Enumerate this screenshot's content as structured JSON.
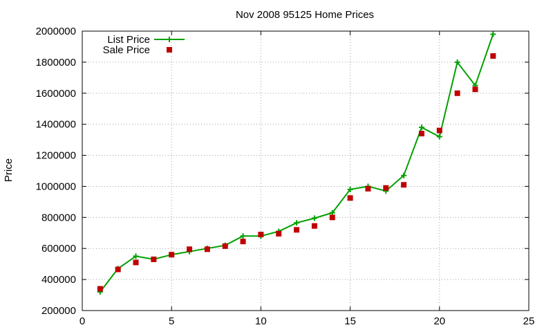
{
  "chart_data": {
    "type": "line",
    "title": "Nov 2008 95125 Home Prices",
    "xlabel": "",
    "ylabel": "Price",
    "xlim": [
      0,
      25
    ],
    "ylim": [
      200000,
      2000000
    ],
    "xticks": [
      "0",
      "5",
      "10",
      "15",
      "20",
      "25"
    ],
    "yticks": [
      "200000",
      "400000",
      "600000",
      "800000",
      "1000000",
      "1200000",
      "1400000",
      "1600000",
      "1800000",
      "2000000"
    ],
    "grid": true,
    "legend_position": "top-left",
    "series": [
      {
        "name": "List Price",
        "style": "line-with-plus-markers",
        "color": "#00a000",
        "x": [
          1,
          2,
          3,
          4,
          5,
          6,
          7,
          8,
          9,
          10,
          11,
          12,
          13,
          14,
          15,
          16,
          17,
          18,
          19,
          20,
          21,
          22,
          23
        ],
        "y": [
          320000,
          470000,
          550000,
          530000,
          560000,
          580000,
          600000,
          620000,
          680000,
          680000,
          710000,
          765000,
          795000,
          830000,
          980000,
          1000000,
          970000,
          1070000,
          1380000,
          1320000,
          1800000,
          1650000,
          1980000
        ]
      },
      {
        "name": "Sale Price",
        "style": "square-markers",
        "color": "#c00000",
        "x": [
          1,
          2,
          3,
          4,
          5,
          6,
          7,
          8,
          9,
          10,
          11,
          12,
          13,
          14,
          15,
          16,
          17,
          18,
          19,
          20,
          21,
          22,
          23
        ],
        "y": [
          340000,
          465000,
          510000,
          530000,
          560000,
          595000,
          595000,
          615000,
          645000,
          690000,
          695000,
          720000,
          745000,
          800000,
          925000,
          985000,
          990000,
          1010000,
          1340000,
          1360000,
          1600000,
          1625000,
          1840000
        ]
      }
    ]
  }
}
